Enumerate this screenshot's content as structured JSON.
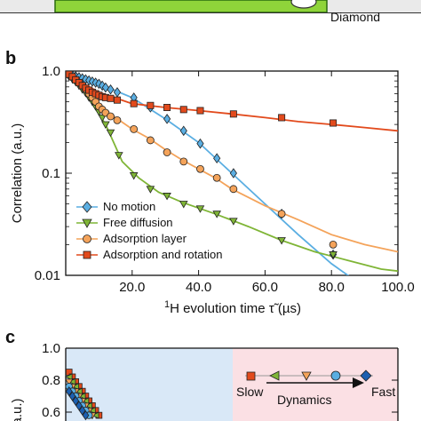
{
  "panel_a": {
    "label": "Diamond",
    "colors": {
      "film": "#8fd43a",
      "film_edge": "#2a6b10"
    }
  },
  "chart_data": [
    {
      "panel": "b",
      "type": "line",
      "xlabel_parts": {
        "pre": "1",
        "mid": "H evolution time ",
        "sym": "τ̃",
        "post": " (µs)"
      },
      "ylabel": "Correlation (a.u.)",
      "xlim": [
        0,
        100
      ],
      "ylim": [
        0.01,
        1
      ],
      "yscale": "log",
      "x_ticks": [
        "20.0",
        "40.0",
        "60.0",
        "80.0",
        "100.0"
      ],
      "x_tick_values": [
        20,
        40,
        60,
        80,
        100
      ],
      "y_ticks": [
        "0.01",
        "0.1",
        "1.0"
      ],
      "y_tick_values": [
        0.01,
        0.1,
        1
      ],
      "legend_position": "bottom-left",
      "series": [
        {
          "name": "No motion",
          "color": "#5aaee2",
          "marker": "diamond",
          "line": [
            [
              0,
              0.95
            ],
            [
              10,
              0.75
            ],
            [
              20,
              0.55
            ],
            [
              30,
              0.34
            ],
            [
              40,
              0.2
            ],
            [
              50,
              0.1
            ],
            [
              60,
              0.05
            ],
            [
              70,
              0.025
            ],
            [
              80,
              0.013
            ],
            [
              88,
              0.0085
            ],
            [
              95,
              0.0055
            ]
          ],
          "points": [
            [
              1,
              0.93
            ],
            [
              2,
              0.91
            ],
            [
              3,
              0.89
            ],
            [
              4,
              0.87
            ],
            [
              5,
              0.85
            ],
            [
              6,
              0.83
            ],
            [
              7,
              0.81
            ],
            [
              8,
              0.79
            ],
            [
              9,
              0.77
            ],
            [
              10,
              0.75
            ],
            [
              11,
              0.72
            ],
            [
              12,
              0.69
            ],
            [
              13.5,
              0.66
            ],
            [
              15.5,
              0.62
            ],
            [
              20.5,
              0.55
            ],
            [
              25.5,
              0.44
            ],
            [
              30.5,
              0.34
            ],
            [
              35.5,
              0.26
            ],
            [
              40.5,
              0.195
            ],
            [
              45.5,
              0.14
            ],
            [
              50.5,
              0.1
            ],
            [
              65,
              0.04
            ],
            [
              80.5,
              0.016
            ]
          ]
        },
        {
          "name": "Free diffusion",
          "color": "#7fb536",
          "marker": "triangle-down",
          "line": [
            [
              0,
              0.92
            ],
            [
              6,
              0.6
            ],
            [
              12,
              0.3
            ],
            [
              17,
              0.13
            ],
            [
              22,
              0.09
            ],
            [
              28,
              0.065
            ],
            [
              35,
              0.052
            ],
            [
              45,
              0.04
            ],
            [
              55,
              0.03
            ],
            [
              65,
              0.022
            ],
            [
              75,
              0.017
            ],
            [
              85,
              0.014
            ],
            [
              95,
              0.0115
            ],
            [
              100,
              0.011
            ]
          ],
          "points": [
            [
              1,
              0.88
            ],
            [
              2,
              0.83
            ],
            [
              3,
              0.78
            ],
            [
              4,
              0.72
            ],
            [
              5,
              0.66
            ],
            [
              6,
              0.61
            ],
            [
              7,
              0.55
            ],
            [
              8,
              0.5
            ],
            [
              9,
              0.45
            ],
            [
              10,
              0.4
            ],
            [
              11,
              0.35
            ],
            [
              12,
              0.3
            ],
            [
              13.5,
              0.25
            ],
            [
              16,
              0.15
            ],
            [
              20.5,
              0.095
            ],
            [
              25.5,
              0.07
            ],
            [
              30.5,
              0.06
            ],
            [
              35.5,
              0.05
            ],
            [
              40.5,
              0.045
            ],
            [
              45.5,
              0.04
            ],
            [
              50.5,
              0.034
            ],
            [
              65,
              0.022
            ],
            [
              80.5,
              0.016
            ]
          ]
        },
        {
          "name": "Adsorption layer",
          "color": "#f4a35a",
          "marker": "circle",
          "line": [
            [
              0,
              0.93
            ],
            [
              5,
              0.65
            ],
            [
              10,
              0.45
            ],
            [
              15,
              0.35
            ],
            [
              20,
              0.27
            ],
            [
              25,
              0.22
            ],
            [
              30,
              0.17
            ],
            [
              35,
              0.135
            ],
            [
              40,
              0.11
            ],
            [
              45,
              0.09
            ],
            [
              50,
              0.07
            ],
            [
              60,
              0.048
            ],
            [
              70,
              0.035
            ],
            [
              80,
              0.025
            ],
            [
              90,
              0.02
            ],
            [
              100,
              0.017
            ]
          ],
          "points": [
            [
              1,
              0.92
            ],
            [
              2,
              0.87
            ],
            [
              3,
              0.82
            ],
            [
              4,
              0.77
            ],
            [
              5,
              0.72
            ],
            [
              6,
              0.66
            ],
            [
              7,
              0.6
            ],
            [
              8,
              0.55
            ],
            [
              9,
              0.5
            ],
            [
              10,
              0.45
            ],
            [
              11,
              0.42
            ],
            [
              12,
              0.39
            ],
            [
              13.5,
              0.36
            ],
            [
              15.5,
              0.33
            ],
            [
              20.5,
              0.27
            ],
            [
              25.5,
              0.21
            ],
            [
              30.5,
              0.16
            ],
            [
              35.5,
              0.13
            ],
            [
              40.5,
              0.11
            ],
            [
              45.5,
              0.09
            ],
            [
              50.5,
              0.07
            ],
            [
              65,
              0.04
            ],
            [
              80.5,
              0.02
            ]
          ]
        },
        {
          "name": "Adsorption and rotation",
          "color": "#e24a1c",
          "marker": "square",
          "line": [
            [
              0,
              0.95
            ],
            [
              10,
              0.62
            ],
            [
              20,
              0.48
            ],
            [
              30,
              0.44
            ],
            [
              40,
              0.41
            ],
            [
              50,
              0.38
            ],
            [
              60,
              0.35
            ],
            [
              70,
              0.32
            ],
            [
              80,
              0.3
            ],
            [
              90,
              0.28
            ],
            [
              100,
              0.26
            ]
          ],
          "points": [
            [
              1,
              0.93
            ],
            [
              2,
              0.88
            ],
            [
              3,
              0.82
            ],
            [
              4,
              0.77
            ],
            [
              5,
              0.72
            ],
            [
              6,
              0.68
            ],
            [
              7,
              0.65
            ],
            [
              8,
              0.62
            ],
            [
              9,
              0.6
            ],
            [
              10,
              0.58
            ],
            [
              11,
              0.56
            ],
            [
              12,
              0.55
            ],
            [
              13.5,
              0.54
            ],
            [
              15.5,
              0.52
            ],
            [
              20.5,
              0.48
            ],
            [
              25.5,
              0.46
            ],
            [
              30.5,
              0.44
            ],
            [
              35.5,
              0.42
            ],
            [
              40.5,
              0.41
            ],
            [
              50.5,
              0.38
            ],
            [
              65,
              0.35
            ],
            [
              80.5,
              0.31
            ]
          ]
        }
      ]
    },
    {
      "panel": "c",
      "type": "line",
      "ylabel": "(a.u.)",
      "ylim": [
        0.5,
        1.0
      ],
      "y_ticks": [
        "1.0",
        "0.8",
        "0.6"
      ],
      "y_tick_values": [
        1.0,
        0.8,
        0.6
      ],
      "regions": [
        {
          "x_range": [
            0,
            50
          ],
          "color": "#d9e8f7"
        },
        {
          "x_range": [
            50,
            100
          ],
          "color": "#fbe0e4"
        }
      ],
      "inset": {
        "slow_label": "Slow",
        "dynamics_label": "Dynamics",
        "fast_label": "Fast"
      },
      "series": [
        {
          "name": "Adsorption and rotation",
          "color": "#e24a1c",
          "marker": "square",
          "points": [
            [
              1,
              0.85
            ],
            [
              2,
              0.82
            ],
            [
              3,
              0.79
            ],
            [
              4,
              0.76
            ],
            [
              5,
              0.73
            ],
            [
              6,
              0.7
            ],
            [
              7,
              0.67
            ],
            [
              8,
              0.64
            ],
            [
              9,
              0.61
            ],
            [
              10,
              0.58
            ]
          ]
        },
        {
          "name": "Free diffusion left",
          "color": "#7fb536",
          "marker": "triangle-left",
          "points": [
            [
              1,
              0.82
            ],
            [
              2,
              0.79
            ],
            [
              3,
              0.76
            ],
            [
              4,
              0.73
            ],
            [
              5,
              0.7
            ],
            [
              6,
              0.67
            ],
            [
              7,
              0.64
            ],
            [
              8,
              0.61
            ],
            [
              9,
              0.58
            ]
          ]
        },
        {
          "name": "Free diffusion",
          "color": "#f4a35a",
          "marker": "triangle-down",
          "points": [
            [
              1,
              0.79
            ],
            [
              2,
              0.76
            ],
            [
              3,
              0.73
            ],
            [
              4,
              0.7
            ],
            [
              5,
              0.67
            ],
            [
              6,
              0.64
            ],
            [
              7,
              0.61
            ],
            [
              8,
              0.58
            ]
          ]
        },
        {
          "name": "Adsorption layer",
          "color": "#5aaee2",
          "marker": "circle",
          "points": [
            [
              1,
              0.76
            ],
            [
              2,
              0.73
            ],
            [
              3,
              0.7
            ],
            [
              4,
              0.67
            ],
            [
              5,
              0.64
            ],
            [
              6,
              0.61
            ],
            [
              7,
              0.58
            ]
          ]
        },
        {
          "name": "No motion",
          "color": "#1c5fb0",
          "marker": "diamond",
          "points": [
            [
              1,
              0.73
            ],
            [
              2,
              0.7
            ],
            [
              3,
              0.67
            ],
            [
              4,
              0.64
            ],
            [
              5,
              0.61
            ],
            [
              6,
              0.58
            ]
          ]
        }
      ]
    }
  ]
}
